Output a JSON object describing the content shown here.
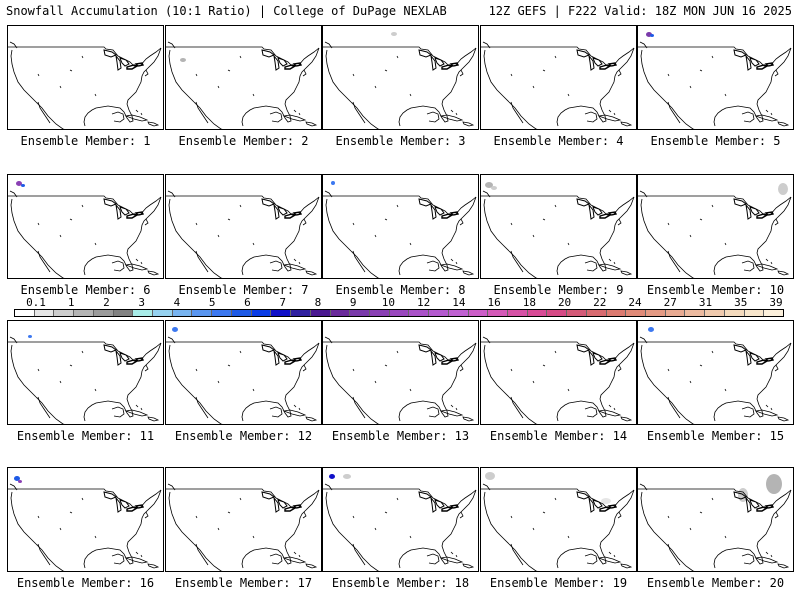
{
  "header": {
    "title_left": "Snowfall Accumulation (10:1 Ratio) | College of DuPage NEXLAB",
    "title_right": "12Z GEFS | F222 Valid: 18Z MON JUN 16 2025"
  },
  "panels": [
    {
      "label": "Ensemble Member: 1"
    },
    {
      "label": "Ensemble Member: 2"
    },
    {
      "label": "Ensemble Member: 3"
    },
    {
      "label": "Ensemble Member: 4"
    },
    {
      "label": "Ensemble Member: 5"
    },
    {
      "label": "Ensemble Member: 6"
    },
    {
      "label": "Ensemble Member: 7"
    },
    {
      "label": "Ensemble Member: 8"
    },
    {
      "label": "Ensemble Member: 9"
    },
    {
      "label": "Ensemble Member: 10"
    },
    {
      "label": "Ensemble Member: 11"
    },
    {
      "label": "Ensemble Member: 12"
    },
    {
      "label": "Ensemble Member: 13"
    },
    {
      "label": "Ensemble Member: 14"
    },
    {
      "label": "Ensemble Member: 15"
    },
    {
      "label": "Ensemble Member: 16"
    },
    {
      "label": "Ensemble Member: 17"
    },
    {
      "label": "Ensemble Member: 18"
    },
    {
      "label": "Ensemble Member: 19"
    },
    {
      "label": "Ensemble Member: 20"
    }
  ],
  "color_scale": {
    "labels": [
      "0.1",
      "1",
      "2",
      "3",
      "4",
      "5",
      "6",
      "7",
      "8",
      "9",
      "10",
      "12",
      "14",
      "16",
      "18",
      "20",
      "22",
      "24",
      "27",
      "31",
      "35",
      "39"
    ],
    "colors": [
      "#ffffff",
      "#e6e6e6",
      "#cdcdcd",
      "#b4b4b4",
      "#9b9b9b",
      "#828282",
      "#a8ece8",
      "#96d2f0",
      "#78b4f0",
      "#5a96f0",
      "#3c78f0",
      "#1e5ae6",
      "#0a3ce6",
      "#1010c8",
      "#3020a0",
      "#4a1890",
      "#6a2a9a",
      "#7a3aaa",
      "#8a40b4",
      "#9a48be",
      "#aa52c8",
      "#b45acf",
      "#c062d2",
      "#cc5ec8",
      "#d45ab8",
      "#d652a6",
      "#d84a96",
      "#d64a86",
      "#d45a78",
      "#d86a70",
      "#dc7a70",
      "#e08a78",
      "#e49a84",
      "#e8aa92",
      "#ecbaa0",
      "#f0caae",
      "#f4dabd",
      "#f8e6cc",
      "#fcf0dc"
    ]
  }
}
